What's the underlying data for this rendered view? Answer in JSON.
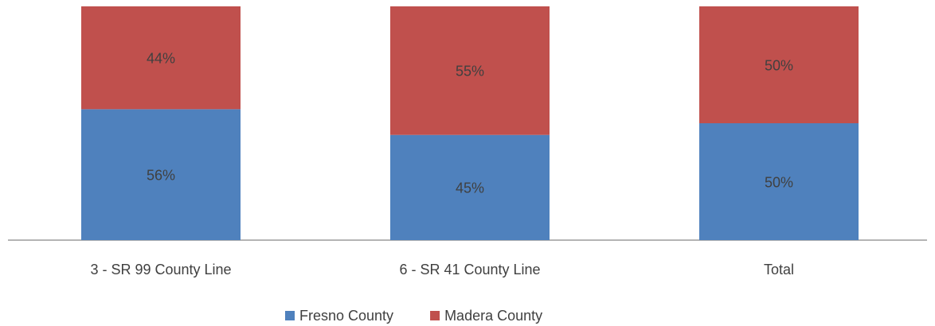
{
  "chart_data": {
    "type": "stacked_bar",
    "categories": [
      "3 - SR 99 County Line",
      "6 - SR 41 County Line",
      "Total"
    ],
    "series": [
      {
        "name": "Fresno County",
        "color": "#4f81bd",
        "values": [
          56,
          45,
          50
        ],
        "value_labels": [
          "56%",
          "45%",
          "50%"
        ]
      },
      {
        "name": "Madera County",
        "color": "#c0504d",
        "values": [
          44,
          55,
          50
        ],
        "value_labels": [
          "44%",
          "55%",
          "50%"
        ]
      }
    ],
    "ylim": [
      0,
      100
    ],
    "legend": "bottom"
  }
}
